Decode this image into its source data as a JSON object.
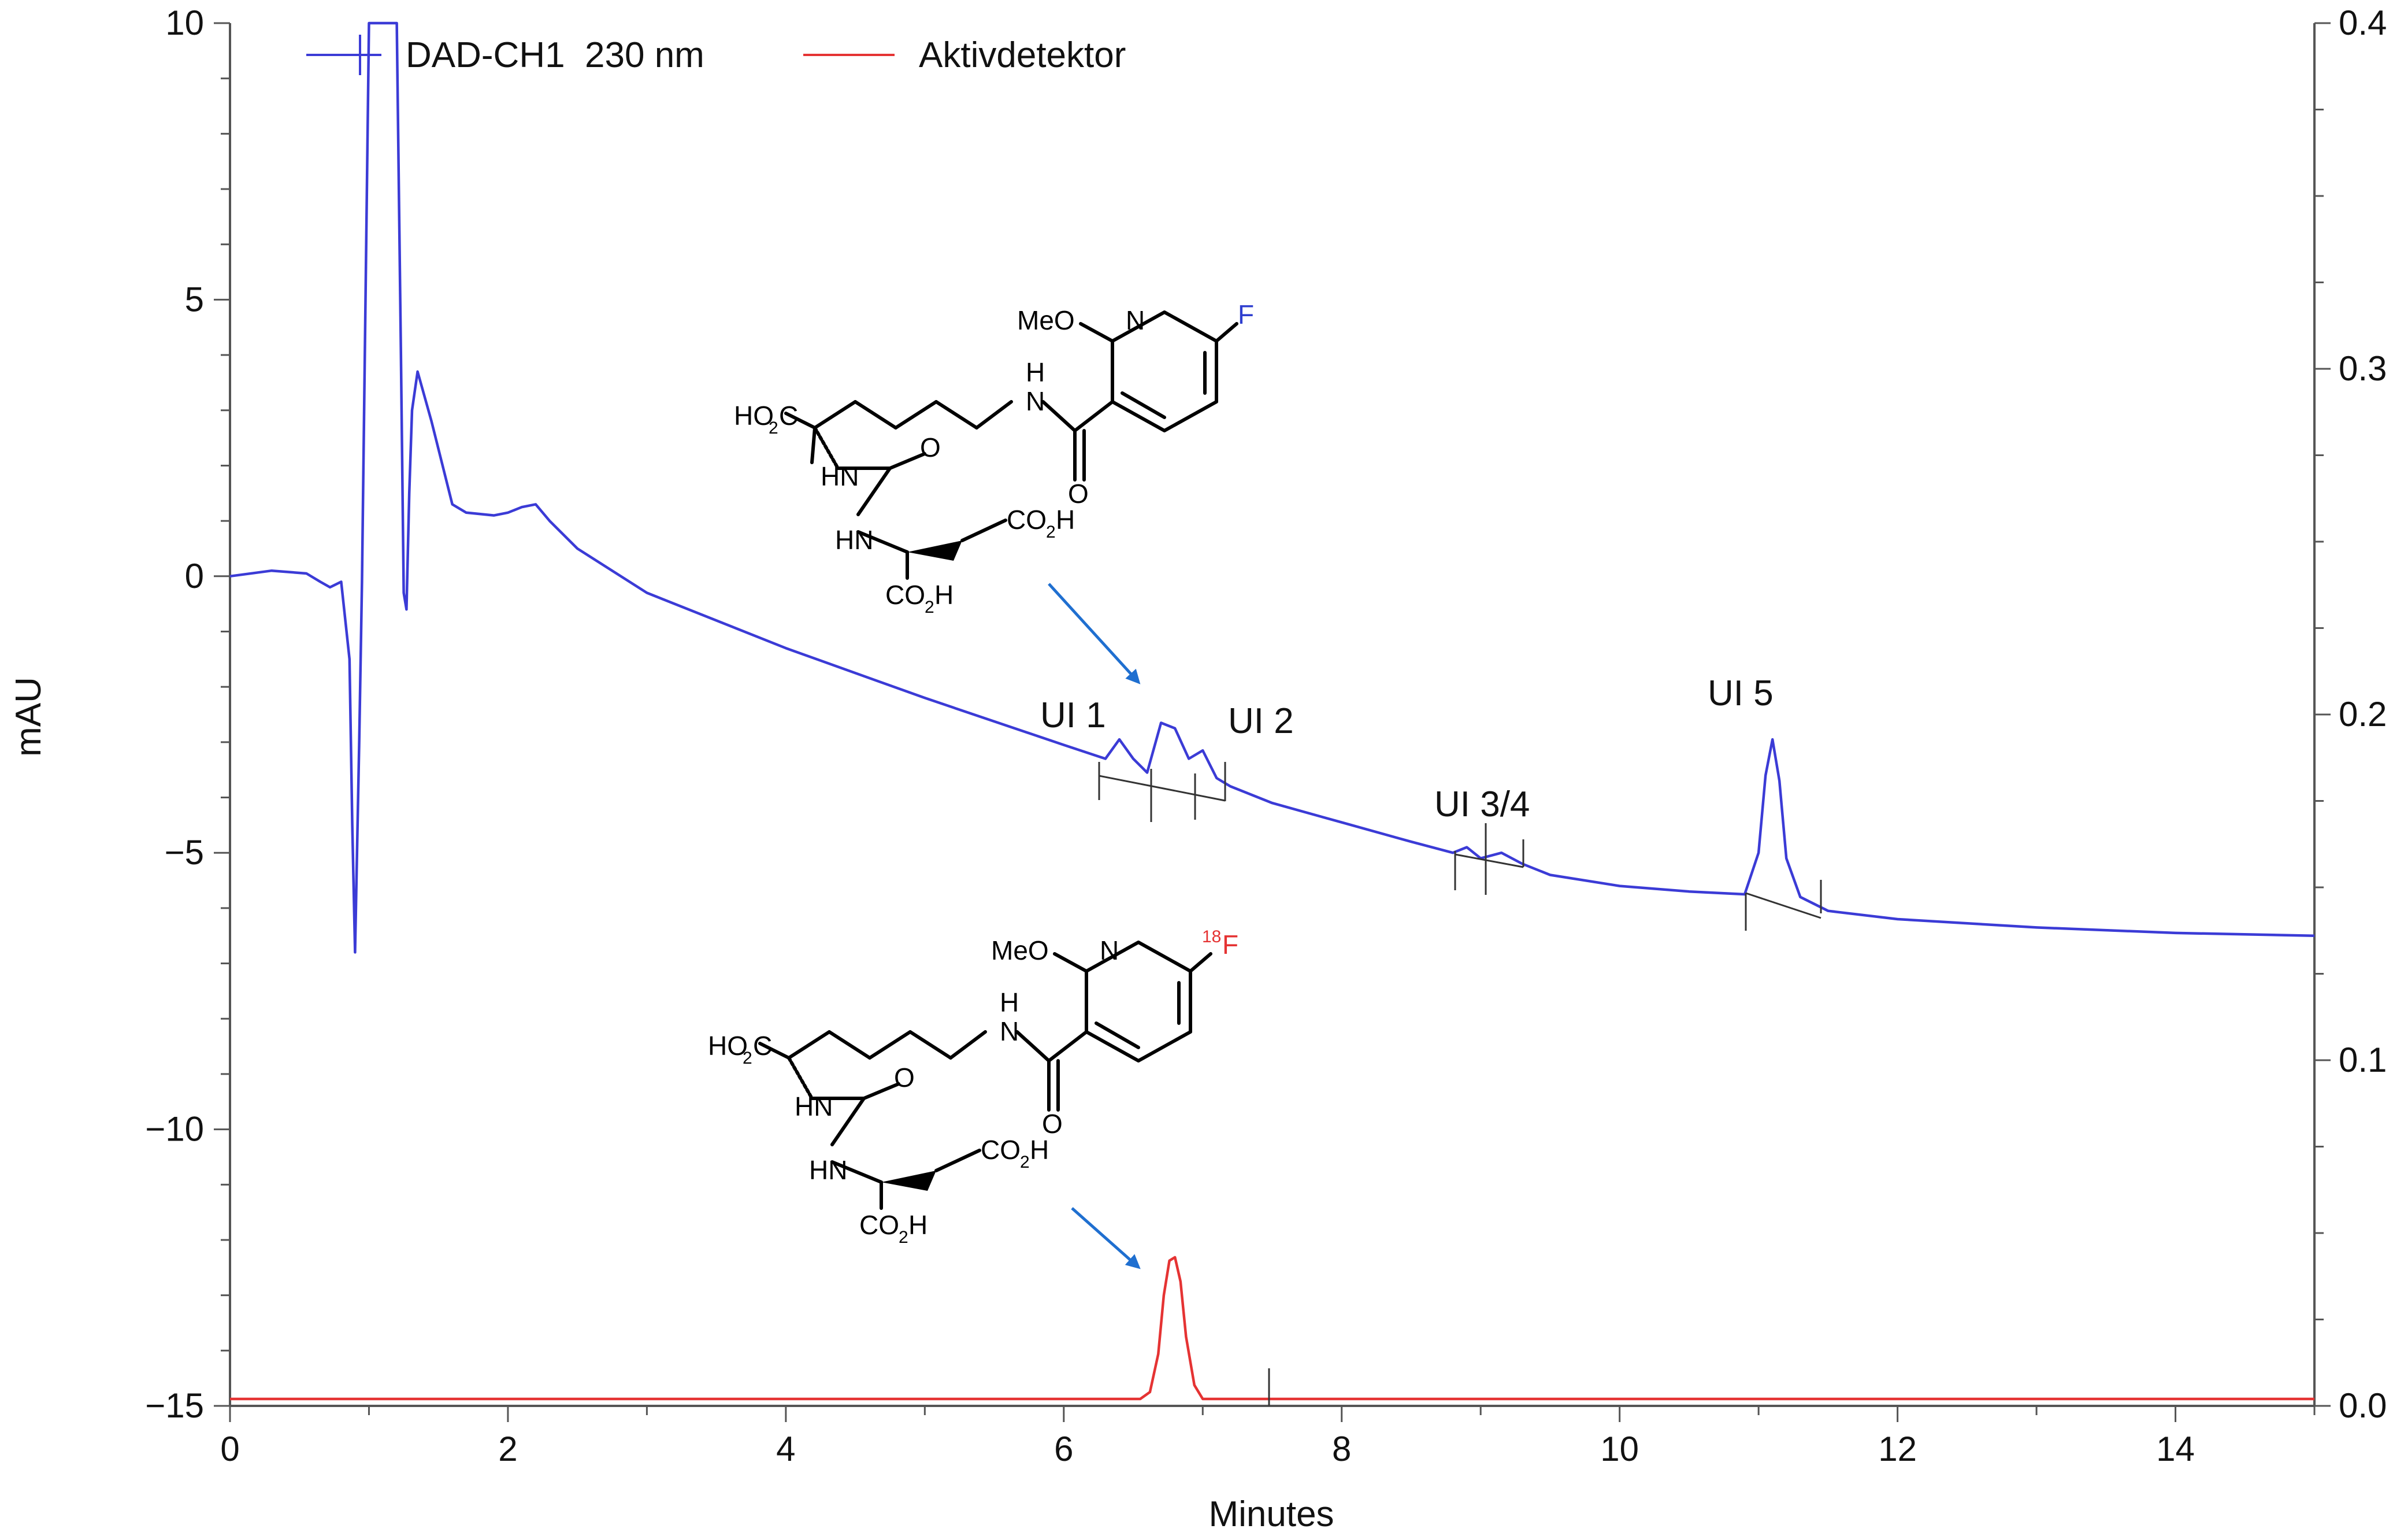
{
  "chart_data": {
    "type": "line",
    "xlabel": "Minutes",
    "ylabel": "mAU",
    "xlim": [
      0,
      15
    ],
    "ylim": [
      -15,
      10
    ],
    "y2lim": [
      0.0,
      0.4
    ],
    "x_ticks": [
      "0",
      "2",
      "4",
      "6",
      "8",
      "10",
      "12",
      "14"
    ],
    "y_ticks": [
      "10",
      "5",
      "0",
      "−5",
      "−10",
      "−15"
    ],
    "y2_ticks": [
      "0.4",
      "0.3",
      "0.2",
      "0.1",
      "0.0"
    ],
    "grid": false,
    "legend_position": "top",
    "series": [
      {
        "name": "DAD-CH1  230 nm",
        "axis": "left",
        "color": "#3b3bd6",
        "x": [
          0,
          0.3,
          0.55,
          0.65,
          0.72,
          0.8,
          0.86,
          0.88,
          0.9,
          0.93,
          0.95,
          0.97,
          1.0,
          1.2,
          1.23,
          1.25,
          1.27,
          1.29,
          1.31,
          1.35,
          1.45,
          1.55,
          1.6,
          1.7,
          1.9,
          2.0,
          2.1,
          2.2,
          2.3,
          2.5,
          3.0,
          4.0,
          5.0,
          6.0,
          6.3,
          6.4,
          6.5,
          6.6,
          6.7,
          6.8,
          6.9,
          7.0,
          7.1,
          7.2,
          7.5,
          8.0,
          8.5,
          8.8,
          8.9,
          9.0,
          9.15,
          9.3,
          9.5,
          10.0,
          10.5,
          10.9,
          11.0,
          11.05,
          11.1,
          11.15,
          11.2,
          11.3,
          11.5,
          12.0,
          13.0,
          14.0,
          15.0
        ],
        "y": [
          0.0,
          0.1,
          0.05,
          -0.1,
          -0.2,
          -0.1,
          -1.5,
          -4.5,
          -6.8,
          -3.0,
          -0.1,
          4.0,
          10.0,
          10.0,
          4.0,
          -0.3,
          -0.6,
          1.5,
          3.0,
          3.7,
          2.8,
          1.8,
          1.3,
          1.15,
          1.1,
          1.15,
          1.25,
          1.3,
          1.0,
          0.5,
          -0.3,
          -1.3,
          -2.2,
          -3.05,
          -3.3,
          -2.95,
          -3.3,
          -3.55,
          -2.65,
          -2.75,
          -3.3,
          -3.15,
          -3.65,
          -3.8,
          -4.1,
          -4.45,
          -4.8,
          -5.0,
          -4.9,
          -5.1,
          -5.0,
          -5.2,
          -5.4,
          -5.6,
          -5.7,
          -5.75,
          -5.0,
          -3.6,
          -2.95,
          -3.7,
          -5.1,
          -5.8,
          -6.05,
          -6.2,
          -6.35,
          -6.45,
          -6.5
        ]
      },
      {
        "name": "Aktivdetektor",
        "axis": "right",
        "color": "#e53333",
        "x": [
          0,
          6.55,
          6.62,
          6.68,
          6.72,
          6.76,
          6.8,
          6.84,
          6.88,
          6.94,
          7.0,
          7.1,
          15
        ],
        "y": [
          0.002,
          0.002,
          0.004,
          0.015,
          0.032,
          0.042,
          0.043,
          0.036,
          0.02,
          0.006,
          0.002,
          0.002,
          0.002
        ]
      }
    ],
    "annotations": [
      "UI 1",
      "UI 2",
      "UI 3/4",
      "UI 5"
    ]
  },
  "structure_top": {
    "atoms": [
      "MeO",
      "N",
      "F",
      "N",
      "H",
      "HO",
      "2",
      "C",
      "O",
      "HN",
      "O",
      "HN",
      "CO",
      "2",
      "H",
      "CO",
      "2",
      "H"
    ]
  },
  "structure_bottom": {
    "atoms": [
      "MeO",
      "N",
      "18",
      "F",
      "N",
      "H",
      "HO",
      "2",
      "C",
      "O",
      "HN",
      "O",
      "HN",
      "CO",
      "2",
      "H",
      "CO",
      "2",
      "H"
    ]
  },
  "colors": {
    "uv_trace": "#3b3bd6",
    "radio_trace": "#e53333",
    "arrow": "#1f6fd0",
    "baseline": "#333333"
  }
}
